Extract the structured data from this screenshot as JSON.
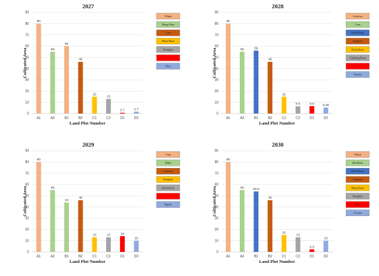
{
  "chart_data": [
    {
      "type": "bar",
      "title": "2027",
      "xlabel": "Land Plot Number",
      "ylabel": "Cultivated Area",
      "ylim": [
        0,
        90
      ],
      "categories": [
        "A1",
        "A2",
        "B1",
        "B2",
        "C1",
        "C2",
        "D1",
        "D2"
      ],
      "values": [
        80,
        55,
        60,
        46,
        15,
        13,
        0.7,
        1.7
      ],
      "value_labels": [
        "80",
        "55",
        "60",
        "46",
        "15",
        "13",
        "0.7",
        "1.7"
      ],
      "crops": [
        "Wheat",
        "Mung Bean",
        "Wheat",
        "Corn",
        "Black Bean",
        "Pumpkin",
        "?",
        "Rice"
      ],
      "colors": [
        "#f4b183",
        "#a9d18e",
        "#f4b183",
        "#c55a11",
        "#ffc000",
        "#a5a5a5",
        "#ff0000",
        "#8faadc"
      ],
      "legend": [
        {
          "label": "Wheat",
          "color": "#f4b183"
        },
        {
          "label": "Mung Bean",
          "color": "#a9d18e"
        },
        {
          "label": "Corn",
          "color": "#c55a11"
        },
        {
          "label": "Black Bean",
          "color": "#ffc000"
        },
        {
          "label": "Pumpkin",
          "color": "#a5a5a5"
        },
        {
          "label": "?",
          "color": "#ff0000"
        },
        {
          "label": "Rice",
          "color": "#8faadc"
        }
      ],
      "legend_placement": "right",
      "grid": true
    },
    {
      "type": "bar",
      "title": "2028",
      "xlabel": "Land Plot Number",
      "ylabel": "Cultivated Area",
      "ylim": [
        0,
        90
      ],
      "categories": [
        "A1",
        "A2",
        "B1",
        "B2",
        "C1",
        "C2",
        "D1",
        "D2"
      ],
      "values": [
        80,
        55,
        56,
        46,
        15,
        6.5,
        6.6,
        5.25
      ],
      "value_labels": [
        "80",
        "55",
        "56",
        "46",
        "15",
        "6.5",
        "6.6",
        "5.25"
      ],
      "crops": [
        "Soybean",
        "Corn",
        "Black Bean",
        "Sorghum",
        "Buckwheat",
        "Climbing Bean",
        "?",
        "Tomato"
      ],
      "colors": [
        "#f4b183",
        "#a9d18e",
        "#4472c4",
        "#c55a11",
        "#ffc000",
        "#a5a5a5",
        "#ff0000",
        "#8faadc"
      ],
      "legend": [
        {
          "label": "Soybean",
          "color": "#f4b183"
        },
        {
          "label": "Corn",
          "color": "#a9d18e"
        },
        {
          "label": "Black Bean",
          "color": "#4472c4"
        },
        {
          "label": "Sorghum",
          "color": "#c55a11"
        },
        {
          "label": "Buckwheat",
          "color": "#ffc000"
        },
        {
          "label": "Climbing Bean",
          "color": "#a5a5a5"
        },
        {
          "label": "?",
          "color": "#ff0000"
        },
        {
          "label": "Tomato",
          "color": "#8faadc"
        }
      ],
      "legend_placement": "right",
      "grid": true
    },
    {
      "type": "bar",
      "title": "2029",
      "xlabel": "Land Plot Number",
      "ylabel": "Cultivated Area",
      "ylim": [
        0,
        90
      ],
      "categories": [
        "A1",
        "A2",
        "B1",
        "B2",
        "C1",
        "C2",
        "D1",
        "D2"
      ],
      "values": [
        80,
        55,
        44,
        46,
        13,
        13,
        14,
        10
      ],
      "value_labels": [
        "80",
        "55",
        "44",
        "46",
        "13",
        "13",
        "14",
        "10"
      ],
      "crops": [
        "Corn",
        "Millet",
        "Millet",
        "Soybean",
        "Pumpkin",
        "Buckwheat",
        "?",
        "Rapini"
      ],
      "colors": [
        "#f4b183",
        "#a9d18e",
        "#a9d18e",
        "#c55a11",
        "#ffc000",
        "#a5a5a5",
        "#ff0000",
        "#8faadc"
      ],
      "legend": [
        {
          "label": "Corn",
          "color": "#f4b183"
        },
        {
          "label": "Millet",
          "color": "#a9d18e"
        },
        {
          "label": "Soybean",
          "color": "#c55a11"
        },
        {
          "label": "Pumpkin",
          "color": "#ffc000"
        },
        {
          "label": "Buckwheat",
          "color": "#a5a5a5"
        },
        {
          "label": "?",
          "color": "#ff0000"
        },
        {
          "label": "Rapini",
          "color": "#8faadc"
        }
      ],
      "legend_placement": "right",
      "grid": true
    },
    {
      "type": "bar",
      "title": "2030",
      "xlabel": "Land Plot Number",
      "ylabel": "Cultivated Area",
      "ylim": [
        0,
        90
      ],
      "categories": [
        "A1",
        "A2",
        "B1",
        "B2",
        "C1",
        "C2",
        "D1",
        "D2"
      ],
      "values": [
        80,
        55,
        53.8,
        46,
        15,
        13,
        2.3,
        10
      ],
      "value_labels": [
        "80",
        "55",
        "53.8",
        "46",
        "15",
        "13",
        "2.3",
        "10"
      ],
      "crops": [
        "Wheat",
        "Red Bean",
        "Black Bean",
        "Sorghum",
        "Mung Bean",
        "Pumpkin",
        "Rice",
        "Cowpea"
      ],
      "colors": [
        "#f4b183",
        "#a9d18e",
        "#4472c4",
        "#c55a11",
        "#ffc000",
        "#a5a5a5",
        "#ff0000",
        "#8faadc"
      ],
      "legend": [
        {
          "label": "Wheat",
          "color": "#f4b183"
        },
        {
          "label": "Red Bean",
          "color": "#a9d18e"
        },
        {
          "label": "Black Bean",
          "color": "#4472c4"
        },
        {
          "label": "Sorghum",
          "color": "#c55a11"
        },
        {
          "label": "Mung Bean",
          "color": "#ffc000"
        },
        {
          "label": "Pumpkin",
          "color": "#a5a5a5"
        },
        {
          "label": "Rice",
          "color": "#ff0000"
        },
        {
          "label": "Cowpea",
          "color": "#8faadc"
        }
      ],
      "legend_placement": "right",
      "grid": true
    }
  ]
}
